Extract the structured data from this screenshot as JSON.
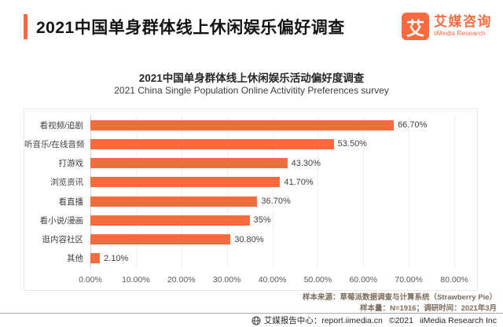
{
  "theme": {
    "accent": "#F76B3F"
  },
  "header": {
    "title": "2021中国单身群体线上休闲娱乐偏好调查",
    "logo": {
      "glyph": "艾",
      "name_cn": "艾媒咨询",
      "name_en": "iiMedia Research"
    }
  },
  "chart_data": {
    "type": "bar",
    "orientation": "horizontal",
    "title": "2021中国单身群体线上休闲娱乐活动偏好度调查",
    "subtitle": "2021 China Single Population Online Activitity Preferences survey",
    "categories": [
      "看视频/追剧",
      "听音乐/在线音频",
      "打游戏",
      "浏览资讯",
      "看直播",
      "看小说/漫画",
      "逛内容社区",
      "其他"
    ],
    "values": [
      66.7,
      53.5,
      43.3,
      41.7,
      36.7,
      35,
      30.8,
      2.1
    ],
    "value_labels": [
      "66.70%",
      "53.50%",
      "43.30%",
      "41.70%",
      "36.70%",
      "35%",
      "30.80%",
      "2.10%"
    ],
    "x_ticks": [
      "0.00%",
      "10.00%",
      "20.00%",
      "30.00%",
      "40.00%",
      "50.00%",
      "60.00%",
      "70.00%",
      "80.00%"
    ],
    "x_tick_values": [
      0,
      10,
      20,
      30,
      40,
      50,
      60,
      70,
      80
    ],
    "axis_max": 85,
    "bar_color": "#F76B3F",
    "grid": "vertical",
    "legend": "none"
  },
  "notes": {
    "line1": "样本来源：草莓派数据调查与计算系统（Strawberry Pie）",
    "line2": "样本量：N=1916；调研时间：2021年3月"
  },
  "footer": {
    "report_center": "艾媒报告中心：report.iimedia.cn",
    "copyright": "©2021",
    "company": "iiMedia Research Inc"
  }
}
